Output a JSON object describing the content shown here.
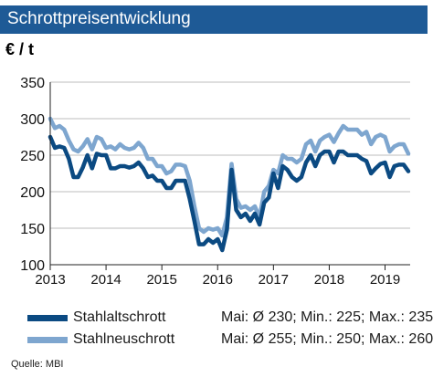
{
  "header": {
    "title": "Schrottpreisentwicklung",
    "unit": "€ / t"
  },
  "legend": [
    {
      "name": "Stahlaltschrott",
      "stats": "Mai: Ø 230; Min.: 225; Max.: 235",
      "color": "#0b4a82"
    },
    {
      "name": "Stahlneuschrott",
      "stats": "Mai: Ø 255; Min.: 250; Max.: 260",
      "color": "#7ea6cf"
    }
  ],
  "source": "Quelle: MBI",
  "chart_data": {
    "type": "line",
    "title": "Schrottpreisentwicklung",
    "ylabel": "€ / t",
    "xlabel": "",
    "ylim": [
      100,
      350
    ],
    "yticks": [
      100,
      150,
      200,
      250,
      300,
      350
    ],
    "xlim": [
      2013,
      2019.45
    ],
    "xticks": [
      2013,
      2014,
      2015,
      2016,
      2017,
      2018,
      2019
    ],
    "xtick_labels": [
      "2013",
      "2014",
      "2015",
      "2016",
      "2017",
      "2018",
      "2019"
    ],
    "grid": "horizontal",
    "frequency": "monthly",
    "x_start": "2013-01",
    "series": [
      {
        "name": "Stahlaltschrott",
        "color": "#0b4a82",
        "values": [
          275,
          260,
          262,
          260,
          245,
          220,
          220,
          233,
          250,
          232,
          252,
          250,
          250,
          232,
          232,
          235,
          235,
          233,
          235,
          240,
          232,
          220,
          222,
          215,
          215,
          205,
          205,
          215,
          215,
          215,
          190,
          160,
          128,
          128,
          135,
          130,
          135,
          120,
          148,
          230,
          175,
          165,
          170,
          160,
          170,
          155,
          185,
          192,
          225,
          205,
          235,
          230,
          220,
          215,
          220,
          240,
          250,
          235,
          250,
          255,
          255,
          240,
          255,
          255,
          250,
          250,
          250,
          245,
          242,
          225,
          232,
          238,
          240,
          220,
          235,
          237,
          237,
          228
        ]
      },
      {
        "name": "Stahlneuschrott",
        "color": "#7ea6cf",
        "values": [
          300,
          287,
          290,
          285,
          270,
          258,
          255,
          262,
          272,
          258,
          275,
          272,
          260,
          262,
          258,
          265,
          260,
          258,
          260,
          267,
          260,
          245,
          245,
          235,
          235,
          225,
          228,
          237,
          237,
          235,
          215,
          180,
          150,
          145,
          150,
          148,
          150,
          140,
          165,
          238,
          190,
          178,
          180,
          175,
          180,
          165,
          200,
          208,
          230,
          225,
          250,
          245,
          245,
          240,
          245,
          265,
          270,
          255,
          270,
          275,
          278,
          268,
          280,
          290,
          285,
          285,
          285,
          278,
          282,
          265,
          275,
          278,
          275,
          255,
          262,
          265,
          265,
          252
        ]
      }
    ]
  }
}
